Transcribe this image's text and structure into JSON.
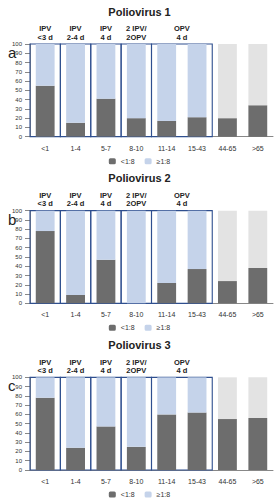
{
  "chart_data": [
    {
      "type": "bar",
      "panel": "a",
      "title": "Poliovirus 1",
      "categories": [
        "<1",
        "1-4",
        "5-7",
        "8-10",
        "11-14",
        "15-43",
        "44-65",
        ">65"
      ],
      "series": [
        {
          "name": "<1:8",
          "color": "#6d6d6d",
          "values": [
            55,
            15,
            41,
            20,
            17,
            21,
            20,
            34
          ]
        },
        {
          "name": "≥1:8",
          "color": "#c5d3ea",
          "colors": [
            "#c5d3ea",
            "#c5d3ea",
            "#c5d3ea",
            "#c5d3ea",
            "#c5d3ea",
            "#c5d3ea",
            "#e3e3e3",
            "#e3e3e3"
          ],
          "values": [
            45,
            85,
            59,
            80,
            83,
            79,
            80,
            66
          ]
        }
      ],
      "annotations": [
        {
          "text": "IPV\n<3 d",
          "from": "<1",
          "to": "<1"
        },
        {
          "text": "IPV\n2-4 d",
          "from": "1-4",
          "to": "1-4"
        },
        {
          "text": "IPV\n4 d",
          "from": "5-7",
          "to": "5-7"
        },
        {
          "text": "2 IPV/\n2OPV",
          "from": "8-10",
          "to": "8-10"
        },
        {
          "text": "OPV\n4 d",
          "from": "11-14",
          "to": "15-43"
        }
      ],
      "ylim": [
        0,
        100
      ],
      "yticks": [
        0,
        10,
        20,
        30,
        40,
        50,
        60,
        70,
        80,
        90,
        100
      ],
      "stacked": true,
      "grid": false,
      "legend": "bottom"
    },
    {
      "type": "bar",
      "panel": "b",
      "title": "Poliovirus 2",
      "categories": [
        "<1",
        "1-4",
        "5-7",
        "8-10",
        "11-14",
        "15-43",
        "44-65",
        ">65"
      ],
      "series": [
        {
          "name": "<1:8",
          "color": "#6d6d6d",
          "values": [
            78,
            9,
            47,
            0,
            22,
            37,
            24,
            38
          ]
        },
        {
          "name": "≥1:8",
          "color": "#c5d3ea",
          "colors": [
            "#c5d3ea",
            "#c5d3ea",
            "#c5d3ea",
            "#c5d3ea",
            "#c5d3ea",
            "#c5d3ea",
            "#e3e3e3",
            "#e3e3e3"
          ],
          "values": [
            22,
            91,
            53,
            100,
            78,
            63,
            76,
            62
          ]
        }
      ],
      "annotations": [
        {
          "text": "IPV\n<3 d",
          "from": "<1",
          "to": "<1"
        },
        {
          "text": "IPV\n2-4 d",
          "from": "1-4",
          "to": "1-4"
        },
        {
          "text": "IPV\n4 d",
          "from": "5-7",
          "to": "5-7"
        },
        {
          "text": "2 IPV/\n2OPV",
          "from": "8-10",
          "to": "8-10"
        },
        {
          "text": "OPV\n4 d",
          "from": "11-14",
          "to": "15-43"
        }
      ],
      "ylim": [
        0,
        100
      ],
      "yticks": [
        0,
        10,
        20,
        30,
        40,
        50,
        60,
        70,
        80,
        90,
        100
      ],
      "stacked": true,
      "grid": false,
      "legend": "bottom"
    },
    {
      "type": "bar",
      "panel": "c",
      "title": "Poliovirus 3",
      "categories": [
        "<1",
        "1-4",
        "5-7",
        "8-10",
        "11-14",
        "15-43",
        "44-65",
        ">65"
      ],
      "series": [
        {
          "name": "<1:8",
          "color": "#6d6d6d",
          "values": [
            78,
            24,
            47,
            25,
            60,
            62,
            55,
            56
          ]
        },
        {
          "name": "≥1:8",
          "color": "#c5d3ea",
          "colors": [
            "#c5d3ea",
            "#c5d3ea",
            "#c5d3ea",
            "#c5d3ea",
            "#c5d3ea",
            "#c5d3ea",
            "#e3e3e3",
            "#e3e3e3"
          ],
          "values": [
            22,
            76,
            53,
            75,
            40,
            38,
            45,
            44
          ]
        }
      ],
      "annotations": [
        {
          "text": "IPV\n<3 d",
          "from": "<1",
          "to": "<1"
        },
        {
          "text": "IPV\n2-4 d",
          "from": "1-4",
          "to": "1-4"
        },
        {
          "text": "IPV\n4 d",
          "from": "5-7",
          "to": "5-7"
        },
        {
          "text": "2 IPV/\n2OPV",
          "from": "8-10",
          "to": "8-10"
        },
        {
          "text": "OPV\n4 d",
          "from": "11-14",
          "to": "15-43"
        }
      ],
      "ylim": [
        0,
        100
      ],
      "yticks": [
        0,
        10,
        20,
        30,
        40,
        50,
        60,
        70,
        80,
        90,
        100
      ],
      "stacked": true,
      "grid": false,
      "legend": "bottom"
    }
  ]
}
